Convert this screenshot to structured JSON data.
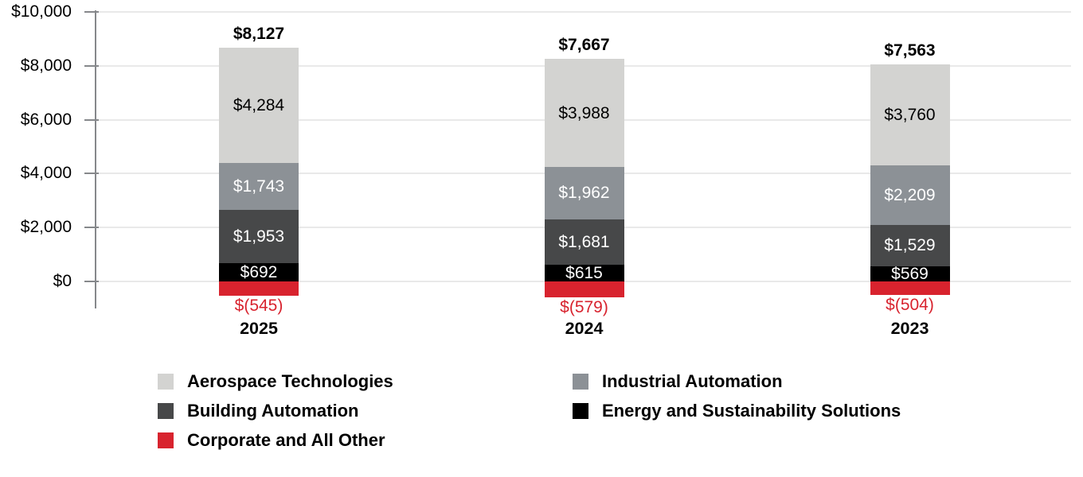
{
  "chart_data": {
    "type": "bar",
    "subtype": "stacked-column-with-negative",
    "categories": [
      "2025",
      "2024",
      "2023"
    ],
    "series": [
      {
        "name": "Aerospace Technologies",
        "color": "#d3d3d1",
        "label_color": "#000000",
        "values": [
          4284,
          3988,
          3760
        ],
        "labels": [
          "$4,284",
          "$3,988",
          "$3,760"
        ]
      },
      {
        "name": "Industrial Automation",
        "color": "#8c9196",
        "label_color": "#ffffff",
        "values": [
          1743,
          1962,
          2209
        ],
        "labels": [
          "$1,743",
          "$1,962",
          "$2,209"
        ]
      },
      {
        "name": "Building Automation",
        "color": "#474849",
        "label_color": "#ffffff",
        "values": [
          1953,
          1681,
          1529
        ],
        "labels": [
          "$1,953",
          "$1,681",
          "$1,529"
        ]
      },
      {
        "name": "Energy and Sustainability Solutions",
        "color": "#000000",
        "label_color": "#ffffff",
        "values": [
          692,
          615,
          569
        ],
        "labels": [
          "$692",
          "$615",
          "$569"
        ]
      },
      {
        "name": "Corporate and All Other",
        "color": "#d8232e",
        "label_color": "#d8232e",
        "values": [
          -545,
          -579,
          -504
        ],
        "labels": [
          "$(545)",
          "$(579)",
          "$(504)"
        ]
      }
    ],
    "totals": [
      "$8,127",
      "$7,667",
      "$7,563"
    ],
    "y_axis": {
      "ticks": [
        "$10,000",
        "$8,000",
        "$6,000",
        "$4,000",
        "$2,000",
        "$0"
      ],
      "tick_values": [
        10000,
        8000,
        6000,
        4000,
        2000,
        0
      ],
      "min": -800,
      "max": 10000,
      "grid": true
    },
    "legend_position": "bottom",
    "colors": {
      "grid": "#e9e9e9",
      "axis": "#86888b",
      "negative_text": "#d8232e",
      "background": "#ffffff"
    }
  }
}
